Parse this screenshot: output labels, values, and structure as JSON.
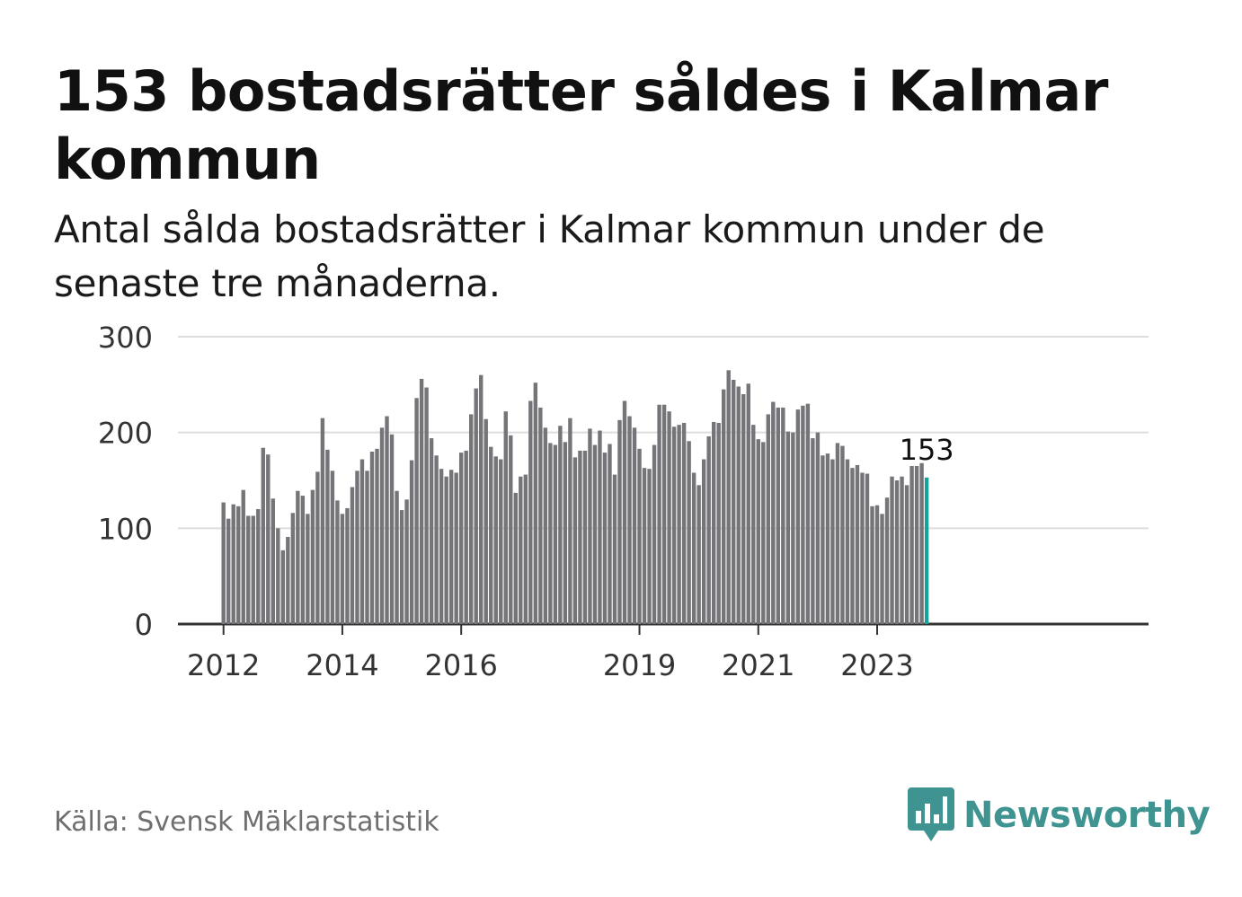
{
  "title": "153 bostadsrätter såldes i Kalmar kommun",
  "subtitle": "Antal sålda bostadsrätter i Kalmar kommun under de senaste tre månaderna.",
  "source": "Källa: Svensk Mäklarstatistik",
  "brand": {
    "name": "Newsworthy",
    "color": "#3f9491",
    "icon": "newsworthy-logo-icon"
  },
  "colors": {
    "bar": "#757478",
    "highlight": "#14a29a",
    "grid": "#dddddd",
    "axis": "#333333"
  },
  "chart_data": {
    "type": "bar",
    "title": "153 bostadsrätter såldes i Kalmar kommun",
    "xlabel": "",
    "ylabel": "",
    "ylim": [
      0,
      300
    ],
    "yticks": [
      0,
      100,
      200,
      300
    ],
    "grid": true,
    "xtick_labels": [
      {
        "label": "2012",
        "index": 0
      },
      {
        "label": "2014",
        "index": 24
      },
      {
        "label": "2016",
        "index": 48
      },
      {
        "label": "2019",
        "index": 84
      },
      {
        "label": "2021",
        "index": 108
      },
      {
        "label": "2023",
        "index": 132
      }
    ],
    "values": [
      127,
      110,
      125,
      123,
      140,
      113,
      113,
      120,
      184,
      177,
      131,
      100,
      77,
      91,
      116,
      139,
      134,
      115,
      140,
      159,
      215,
      182,
      160,
      129,
      115,
      121,
      143,
      160,
      172,
      160,
      180,
      183,
      205,
      217,
      198,
      139,
      119,
      130,
      171,
      236,
      256,
      247,
      194,
      176,
      162,
      154,
      161,
      158,
      179,
      181,
      219,
      246,
      260,
      214,
      185,
      175,
      172,
      222,
      197,
      137,
      154,
      156,
      233,
      252,
      226,
      205,
      189,
      187,
      207,
      190,
      215,
      174,
      181,
      181,
      204,
      187,
      202,
      179,
      188,
      156,
      213,
      233,
      217,
      205,
      183,
      163,
      162,
      187,
      229,
      229,
      222,
      206,
      208,
      210,
      191,
      158,
      145,
      172,
      196,
      211,
      210,
      245,
      265,
      255,
      248,
      240,
      251,
      208,
      193,
      190,
      219,
      232,
      226,
      226,
      201,
      200,
      224,
      228,
      230,
      194,
      200,
      176,
      178,
      172,
      189,
      186,
      172,
      163,
      166,
      158,
      157,
      123,
      124,
      115,
      132,
      154,
      150,
      154,
      145,
      165,
      165,
      168,
      153
    ],
    "highlight_index": 142,
    "annotation": {
      "label": "153",
      "index": 142,
      "value": 153
    }
  }
}
